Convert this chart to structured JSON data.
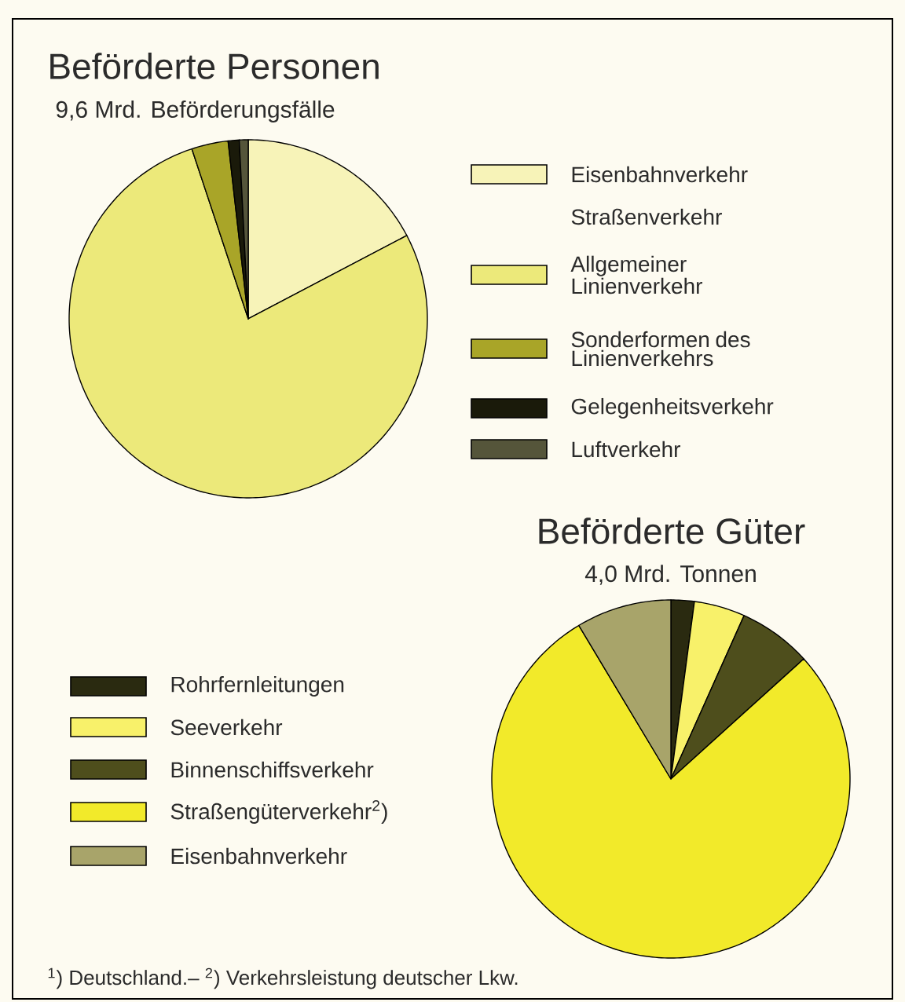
{
  "chart_data": [
    {
      "type": "pie",
      "title": "Beförderte Personen",
      "subtitle": "9,6 Mrd. Beförderungsfälle",
      "categories": [
        "Eisenbahnverkehr",
        "Allgemeiner Linienverkehr",
        "Sonderformen des Linienverkehrs",
        "Gelegenheitsverkehr",
        "Luftverkehr"
      ],
      "values": [
        17.3,
        77.6,
        3.3,
        1.0,
        0.8
      ],
      "colors": [
        "#f7f3b8",
        "#ece97a",
        "#a9a528",
        "#1a1a0a",
        "#55553a"
      ],
      "legend": "right",
      "annotations": [
        "Straßenverkehr"
      ]
    },
    {
      "type": "pie",
      "title": "Beförderte Güter",
      "subtitle": "4,0 Mrd. Tonnen",
      "categories": [
        "Rohrfernleitungen",
        "Seeverkehr",
        "Binnenschiffsverkehr",
        "Straßengüterverkehr$^{2}$)",
        "Eisenbahnverkehr"
      ],
      "values": [
        2.1,
        4.6,
        6.6,
        78.1,
        8.6
      ],
      "colors": [
        "#2a2a10",
        "#f8f16a",
        "#4e4e1c",
        "#f2ea2a",
        "#a8a46a"
      ],
      "legend": "left",
      "annotations": [
        "$^{1}$) Deutschland.– $^{2}$) Verkehrsleistung deutscher Lkw."
      ]
    }
  ]
}
